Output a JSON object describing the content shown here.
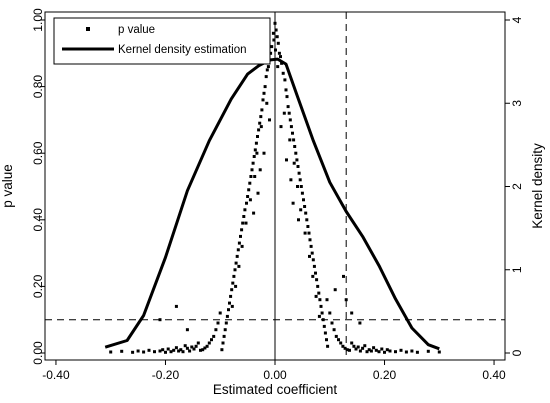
{
  "chart_data": {
    "type": "scatter",
    "xlabel": "Estimated coefficient",
    "ylabel": "p value",
    "y2label": "Kernel density",
    "xlim": [
      -0.42,
      0.42
    ],
    "ylim": [
      0,
      1.0
    ],
    "y2lim": [
      0,
      4.0
    ],
    "xticks": [
      "-0.40",
      "-0.20",
      "0.00",
      "0.20",
      "0.40"
    ],
    "yticks": [
      "0.00",
      "0.20",
      "0.40",
      "0.60",
      "0.80",
      "1.00"
    ],
    "y2ticks": [
      "0",
      "1",
      "2",
      "3",
      "4"
    ],
    "xtick_values": [
      -0.4,
      -0.2,
      0.0,
      0.2,
      0.4
    ],
    "ytick_values": [
      0.0,
      0.2,
      0.4,
      0.6,
      0.8,
      1.0
    ],
    "y2tick_values": [
      0,
      1,
      2,
      3,
      4
    ],
    "reference_lines": {
      "vertical_solid_x": 0.0,
      "vertical_dashed_x": 0.13,
      "horizontal_dashed_y": 0.1
    },
    "legend": {
      "placement": "top-left",
      "items": [
        {
          "label": "p value",
          "marker": "square"
        },
        {
          "label": "Kernel density estimation",
          "marker": "thick-line"
        }
      ]
    },
    "series": [
      {
        "name": "Kernel density estimation",
        "axis": "right",
        "x": [
          -0.31,
          -0.27,
          -0.24,
          -0.2,
          -0.16,
          -0.12,
          -0.08,
          -0.05,
          -0.03,
          -0.01,
          0.005,
          0.02,
          0.04,
          0.07,
          0.1,
          0.13,
          0.16,
          0.19,
          0.22,
          0.25,
          0.28,
          0.3
        ],
        "values": [
          0.07,
          0.15,
          0.45,
          1.15,
          1.95,
          2.55,
          3.05,
          3.35,
          3.45,
          3.52,
          3.53,
          3.47,
          3.1,
          2.55,
          2.05,
          1.7,
          1.4,
          1.05,
          0.65,
          0.3,
          0.1,
          0.05
        ]
      },
      {
        "name": "p value",
        "axis": "left",
        "points": [
          [
            0.0,
            0.99
          ],
          [
            0.002,
            0.97
          ],
          [
            -0.003,
            0.96
          ],
          [
            0.004,
            0.95
          ],
          [
            -0.002,
            0.94
          ],
          [
            0.006,
            0.93
          ],
          [
            -0.006,
            0.92
          ],
          [
            0.001,
            0.91
          ],
          [
            0.008,
            0.9
          ],
          [
            -0.008,
            0.9
          ],
          [
            0.01,
            0.89
          ],
          [
            -0.01,
            0.88
          ],
          [
            0.012,
            0.87
          ],
          [
            -0.012,
            0.86
          ],
          [
            0.005,
            0.86
          ],
          [
            -0.014,
            0.85
          ],
          [
            0.015,
            0.84
          ],
          [
            -0.016,
            0.83
          ],
          [
            0.018,
            0.82
          ],
          [
            -0.018,
            0.8
          ],
          [
            0.02,
            0.79
          ],
          [
            -0.02,
            0.78
          ],
          [
            0.022,
            0.77
          ],
          [
            -0.022,
            0.76
          ],
          [
            0.024,
            0.74
          ],
          [
            -0.024,
            0.73
          ],
          [
            0.026,
            0.72
          ],
          [
            -0.026,
            0.71
          ],
          [
            0.028,
            0.7
          ],
          [
            -0.028,
            0.69
          ],
          [
            0.03,
            0.68
          ],
          [
            -0.03,
            0.67
          ],
          [
            0.032,
            0.66
          ],
          [
            -0.032,
            0.65
          ],
          [
            0.034,
            0.64
          ],
          [
            -0.034,
            0.63
          ],
          [
            0.036,
            0.62
          ],
          [
            -0.036,
            0.61
          ],
          [
            0.038,
            0.6
          ],
          [
            -0.038,
            0.59
          ],
          [
            0.04,
            0.58
          ],
          [
            -0.04,
            0.57
          ],
          [
            0.042,
            0.56
          ],
          [
            -0.042,
            0.55
          ],
          [
            0.044,
            0.54
          ],
          [
            -0.044,
            0.53
          ],
          [
            0.046,
            0.52
          ],
          [
            -0.046,
            0.51
          ],
          [
            0.048,
            0.5
          ],
          [
            -0.048,
            0.49
          ],
          [
            0.05,
            0.48
          ],
          [
            -0.05,
            0.47
          ],
          [
            0.052,
            0.46
          ],
          [
            -0.052,
            0.45
          ],
          [
            0.054,
            0.44
          ],
          [
            -0.055,
            0.43
          ],
          [
            0.056,
            0.42
          ],
          [
            -0.057,
            0.41
          ],
          [
            0.058,
            0.4
          ],
          [
            -0.059,
            0.39
          ],
          [
            0.06,
            0.38
          ],
          [
            -0.061,
            0.37
          ],
          [
            0.062,
            0.36
          ],
          [
            -0.063,
            0.35
          ],
          [
            0.064,
            0.34
          ],
          [
            -0.065,
            0.33
          ],
          [
            0.066,
            0.32
          ],
          [
            -0.067,
            0.31
          ],
          [
            0.068,
            0.3
          ],
          [
            -0.069,
            0.29
          ],
          [
            0.07,
            0.28
          ],
          [
            -0.071,
            0.27
          ],
          [
            0.072,
            0.26
          ],
          [
            -0.073,
            0.25
          ],
          [
            0.074,
            0.24
          ],
          [
            -0.075,
            0.23
          ],
          [
            0.076,
            0.22
          ],
          [
            -0.077,
            0.21
          ],
          [
            0.078,
            0.2
          ],
          [
            -0.079,
            0.19
          ],
          [
            0.08,
            0.18
          ],
          [
            -0.081,
            0.17
          ],
          [
            0.082,
            0.16
          ],
          [
            -0.083,
            0.15
          ],
          [
            0.084,
            0.14
          ],
          [
            -0.085,
            0.13
          ],
          [
            0.086,
            0.12
          ],
          [
            -0.087,
            0.11
          ],
          [
            0.088,
            0.1
          ],
          [
            -0.089,
            0.09
          ],
          [
            0.09,
            0.08
          ],
          [
            -0.091,
            0.07
          ],
          [
            0.092,
            0.06
          ],
          [
            -0.093,
            0.05
          ],
          [
            0.094,
            0.04
          ],
          [
            -0.095,
            0.03
          ],
          [
            0.096,
            0.02
          ],
          [
            -0.097,
            0.01
          ],
          [
            -0.015,
            0.75
          ],
          [
            0.017,
            0.72
          ],
          [
            -0.025,
            0.68
          ],
          [
            0.027,
            0.64
          ],
          [
            -0.033,
            0.6
          ],
          [
            0.035,
            0.57
          ],
          [
            -0.037,
            0.53
          ],
          [
            0.041,
            0.5
          ],
          [
            -0.045,
            0.46
          ],
          [
            0.047,
            0.43
          ],
          [
            -0.053,
            0.39
          ],
          [
            0.055,
            0.36
          ],
          [
            -0.06,
            0.32
          ],
          [
            0.063,
            0.29
          ],
          [
            -0.066,
            0.26
          ],
          [
            0.069,
            0.23
          ],
          [
            -0.072,
            0.2
          ],
          [
            0.075,
            0.17
          ],
          [
            -0.078,
            0.14
          ],
          [
            0.081,
            0.11
          ],
          [
            -0.01,
            0.7
          ],
          [
            0.011,
            0.68
          ],
          [
            -0.02,
            0.6
          ],
          [
            0.021,
            0.58
          ],
          [
            -0.027,
            0.55
          ],
          [
            0.029,
            0.52
          ],
          [
            -0.031,
            0.48
          ],
          [
            0.033,
            0.45
          ],
          [
            -0.039,
            0.42
          ],
          [
            0.043,
            0.4
          ],
          [
            -0.1,
            0.12
          ],
          [
            -0.104,
            0.09
          ],
          [
            -0.108,
            0.07
          ],
          [
            -0.112,
            0.05
          ],
          [
            -0.116,
            0.04
          ],
          [
            -0.12,
            0.03
          ],
          [
            -0.124,
            0.02
          ],
          [
            -0.128,
            0.015
          ],
          [
            -0.132,
            0.01
          ],
          [
            -0.136,
            0.008
          ],
          [
            -0.14,
            0.03
          ],
          [
            -0.144,
            0.02
          ],
          [
            -0.148,
            0.012
          ],
          [
            -0.152,
            0.018
          ],
          [
            -0.156,
            0.006
          ],
          [
            -0.16,
            0.014
          ],
          [
            -0.164,
            0.022
          ],
          [
            -0.168,
            0.004
          ],
          [
            -0.172,
            0.01
          ],
          [
            -0.176,
            0.006
          ],
          [
            -0.18,
            0.016
          ],
          [
            -0.185,
            0.008
          ],
          [
            -0.19,
            0.004
          ],
          [
            -0.195,
            0.012
          ],
          [
            -0.2,
            0.002
          ],
          [
            -0.205,
            0.01
          ],
          [
            -0.21,
            0.006
          ],
          [
            -0.22,
            0.004
          ],
          [
            -0.23,
            0.008
          ],
          [
            -0.24,
            0.003
          ],
          [
            -0.25,
            0.006
          ],
          [
            -0.26,
            0.002
          ],
          [
            -0.28,
            0.005
          ],
          [
            -0.3,
            0.003
          ],
          [
            -0.18,
            0.14
          ],
          [
            -0.21,
            0.1
          ],
          [
            -0.16,
            0.07
          ],
          [
            0.1,
            0.12
          ],
          [
            0.104,
            0.09
          ],
          [
            0.108,
            0.07
          ],
          [
            0.112,
            0.05
          ],
          [
            0.116,
            0.04
          ],
          [
            0.12,
            0.03
          ],
          [
            0.124,
            0.02
          ],
          [
            0.128,
            0.014
          ],
          [
            0.132,
            0.01
          ],
          [
            0.136,
            0.008
          ],
          [
            0.14,
            0.03
          ],
          [
            0.144,
            0.02
          ],
          [
            0.148,
            0.012
          ],
          [
            0.152,
            0.018
          ],
          [
            0.156,
            0.006
          ],
          [
            0.16,
            0.014
          ],
          [
            0.164,
            0.022
          ],
          [
            0.168,
            0.004
          ],
          [
            0.172,
            0.01
          ],
          [
            0.176,
            0.006
          ],
          [
            0.18,
            0.016
          ],
          [
            0.185,
            0.008
          ],
          [
            0.19,
            0.004
          ],
          [
            0.195,
            0.012
          ],
          [
            0.2,
            0.002
          ],
          [
            0.205,
            0.01
          ],
          [
            0.21,
            0.006
          ],
          [
            0.22,
            0.004
          ],
          [
            0.23,
            0.008
          ],
          [
            0.24,
            0.003
          ],
          [
            0.25,
            0.006
          ],
          [
            0.26,
            0.002
          ],
          [
            0.28,
            0.005
          ],
          [
            0.3,
            0.003
          ],
          [
            0.13,
            0.16
          ],
          [
            0.14,
            0.12
          ],
          [
            0.155,
            0.09
          ],
          [
            0.125,
            0.23
          ],
          [
            0.11,
            0.19
          ],
          [
            0.095,
            0.16
          ]
        ]
      }
    ]
  }
}
